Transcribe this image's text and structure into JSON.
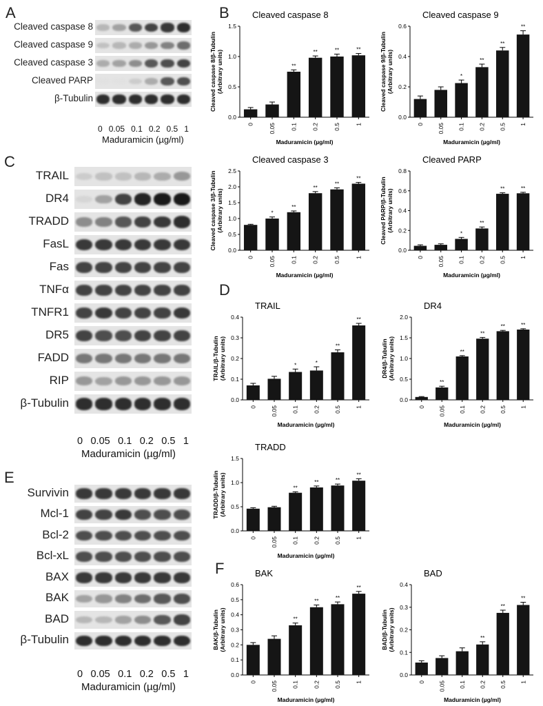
{
  "panels": {
    "A": "A",
    "B": "B",
    "C": "C",
    "D": "D",
    "E": "E",
    "F": "F"
  },
  "blots": {
    "A": {
      "labels": [
        "Cleaved caspase 8",
        "Cleaved caspase 9",
        "Cleaved caspase 3",
        "Cleaved PARP",
        "β-Tubulin"
      ],
      "intensities": [
        [
          0.25,
          0.35,
          0.7,
          0.8,
          0.85,
          0.9
        ],
        [
          0.2,
          0.25,
          0.3,
          0.4,
          0.5,
          0.6
        ],
        [
          0.3,
          0.35,
          0.45,
          0.7,
          0.75,
          0.8
        ],
        [
          0.05,
          0.05,
          0.15,
          0.3,
          0.7,
          0.75
        ],
        [
          0.9,
          0.9,
          0.9,
          0.9,
          0.9,
          0.9
        ]
      ],
      "doses": [
        "0",
        "0.05",
        "0.1",
        "0.2",
        "0.5",
        "1"
      ],
      "xlabel": "Maduramicin  (µg/ml)"
    },
    "C": {
      "labels": [
        "TRAIL",
        "DR4",
        "TRADD",
        "FasL",
        "Fas",
        "TNFα",
        "TNFR1",
        "DR5",
        "FADD",
        "RIP",
        "β-Tubulin"
      ],
      "intensities": [
        [
          0.15,
          0.2,
          0.2,
          0.25,
          0.3,
          0.4
        ],
        [
          0.1,
          0.35,
          0.8,
          0.95,
          1.0,
          1.0
        ],
        [
          0.45,
          0.5,
          0.7,
          0.8,
          0.85,
          0.9
        ],
        [
          0.85,
          0.85,
          0.85,
          0.85,
          0.85,
          0.85
        ],
        [
          0.8,
          0.8,
          0.8,
          0.8,
          0.8,
          0.8
        ],
        [
          0.8,
          0.8,
          0.8,
          0.8,
          0.8,
          0.8
        ],
        [
          0.8,
          0.85,
          0.8,
          0.8,
          0.8,
          0.85
        ],
        [
          0.8,
          0.75,
          0.75,
          0.8,
          0.8,
          0.8
        ],
        [
          0.55,
          0.55,
          0.55,
          0.55,
          0.55,
          0.55
        ],
        [
          0.4,
          0.35,
          0.4,
          0.4,
          0.4,
          0.4
        ],
        [
          0.9,
          0.9,
          0.9,
          0.9,
          0.9,
          0.9
        ]
      ],
      "doses": [
        "0",
        "0.05",
        "0.1",
        "0.2",
        "0.5",
        "1"
      ],
      "xlabel": "Maduramicin  (µg/ml)"
    },
    "E": {
      "labels": [
        "Survivin",
        "Mcl-1",
        "Bcl-2",
        "Bcl-xL",
        "BAX",
        "BAK",
        "BAD",
        "β-Tubulin"
      ],
      "intensities": [
        [
          0.85,
          0.85,
          0.85,
          0.85,
          0.85,
          0.85
        ],
        [
          0.8,
          0.8,
          0.85,
          0.75,
          0.75,
          0.75
        ],
        [
          0.75,
          0.75,
          0.75,
          0.75,
          0.75,
          0.75
        ],
        [
          0.75,
          0.75,
          0.75,
          0.75,
          0.75,
          0.75
        ],
        [
          0.85,
          0.85,
          0.85,
          0.85,
          0.85,
          0.85
        ],
        [
          0.35,
          0.4,
          0.5,
          0.6,
          0.7,
          0.75
        ],
        [
          0.25,
          0.25,
          0.35,
          0.45,
          0.7,
          0.8
        ],
        [
          0.9,
          0.9,
          0.9,
          0.9,
          0.9,
          0.9
        ]
      ],
      "doses": [
        "0",
        "0.05",
        "0.1",
        "0.2",
        "0.5",
        "1"
      ],
      "xlabel": "Maduramicin  (µg/ml)"
    }
  },
  "chart_data": [
    {
      "type": "bar",
      "title": "Cleaved caspase 8",
      "ylabel": "Cleaved caspase 8/β-Tubulin\n(Arbitrary units)",
      "xlabel": "Maduramicin (µg/ml)",
      "categories": [
        "0",
        "0.05",
        "0.1",
        "0.2",
        "0.5",
        "1"
      ],
      "values": [
        0.13,
        0.21,
        0.75,
        0.98,
        1.0,
        1.02
      ],
      "errors": [
        0.03,
        0.04,
        0.03,
        0.03,
        0.04,
        0.03
      ],
      "significance": [
        "",
        "",
        "**",
        "**",
        "**",
        "**"
      ],
      "ylim": [
        0,
        1.5
      ],
      "yticks": [
        "0.0",
        "0.5",
        "1.0",
        "1.5"
      ]
    },
    {
      "type": "bar",
      "title": "Cleaved caspase 9",
      "ylabel": "Cleaved caspase 9/β-Tubulin\n(Arbitrary units)",
      "xlabel": "Maduramicin (µg/ml)",
      "categories": [
        "0",
        "0.05",
        "0.1",
        "0.2",
        "0.5",
        "1"
      ],
      "values": [
        0.12,
        0.18,
        0.225,
        0.33,
        0.44,
        0.545
      ],
      "errors": [
        0.02,
        0.02,
        0.02,
        0.02,
        0.02,
        0.025
      ],
      "significance": [
        "",
        "",
        "*",
        "**",
        "**",
        "**"
      ],
      "ylim": [
        0,
        0.6
      ],
      "yticks": [
        "0.0",
        "0.2",
        "0.4",
        "0.6"
      ]
    },
    {
      "type": "bar",
      "title": "Cleaved caspase 3",
      "ylabel": "Cleaved caspase 3/β-Tubulin\n(Arbitrary units)",
      "xlabel": "Maduramicin (µg/ml)",
      "categories": [
        "0",
        "0.05",
        "0.1",
        "0.2",
        "0.5",
        "1"
      ],
      "values": [
        0.8,
        1.0,
        1.2,
        1.8,
        1.92,
        2.1
      ],
      "errors": [
        0.02,
        0.05,
        0.04,
        0.05,
        0.05,
        0.04
      ],
      "significance": [
        "",
        "*",
        "**",
        "**",
        "**",
        "**"
      ],
      "ylim": [
        0,
        2.5
      ],
      "yticks": [
        "0.0",
        "0.5",
        "1.0",
        "1.5",
        "2.0",
        "2.5"
      ]
    },
    {
      "type": "bar",
      "title": "Cleaved PARP",
      "ylabel": "Cleaved PARP/β-Tubulin\n(Arbitrary units)",
      "xlabel": "Maduramicin (µg/ml)",
      "categories": [
        "0",
        "0.05",
        "0.1",
        "0.2",
        "0.5",
        "1"
      ],
      "values": [
        0.045,
        0.055,
        0.115,
        0.22,
        0.57,
        0.575
      ],
      "errors": [
        0.01,
        0.01,
        0.015,
        0.015,
        0.01,
        0.01
      ],
      "significance": [
        "",
        "",
        "*",
        "**",
        "**",
        "**"
      ],
      "ylim": [
        0,
        0.8
      ],
      "yticks": [
        "0.0",
        "0.2",
        "0.4",
        "0.6",
        "0.8"
      ]
    },
    {
      "type": "bar",
      "title": "TRAIL",
      "ylabel": "TRAIL/β-Tubulin\n(Arbitrary units)",
      "xlabel": "Maduramicin (µg/ml)",
      "categories": [
        "0",
        "0.05",
        "0.1",
        "0.2",
        "0.5",
        "1"
      ],
      "values": [
        0.07,
        0.102,
        0.135,
        0.142,
        0.23,
        0.36
      ],
      "errors": [
        0.01,
        0.012,
        0.014,
        0.018,
        0.012,
        0.01
      ],
      "significance": [
        "",
        "",
        "*",
        "*",
        "**",
        "**"
      ],
      "ylim": [
        0,
        0.4
      ],
      "yticks": [
        "0.0",
        "0.1",
        "0.2",
        "0.3",
        "0.4"
      ]
    },
    {
      "type": "bar",
      "title": "DR4",
      "ylabel": "DR4/β-Tubulin\n(Arbitrary units)",
      "xlabel": "Maduramicin (µg/ml)",
      "categories": [
        "0",
        "0.05",
        "0.1",
        "0.2",
        "0.5",
        "1"
      ],
      "values": [
        0.07,
        0.3,
        1.05,
        1.48,
        1.66,
        1.7
      ],
      "errors": [
        0.01,
        0.03,
        0.02,
        0.03,
        0.02,
        0.02
      ],
      "significance": [
        "",
        "**",
        "**",
        "**",
        "**",
        "**"
      ],
      "ylim": [
        0,
        2.0
      ],
      "yticks": [
        "0.0",
        "0.5",
        "1.0",
        "1.5",
        "2.0"
      ]
    },
    {
      "type": "bar",
      "title": "TRADD",
      "ylabel": "TRADD/β-Tubulin\n(Arbitrary units)",
      "xlabel": "Maduramicin (µg/ml)",
      "categories": [
        "0",
        "0.05",
        "0.1",
        "0.2",
        "0.5",
        "1"
      ],
      "values": [
        0.46,
        0.49,
        0.79,
        0.9,
        0.94,
        1.04
      ],
      "errors": [
        0.02,
        0.02,
        0.02,
        0.03,
        0.03,
        0.04
      ],
      "significance": [
        "",
        "",
        "**",
        "**",
        "**",
        "**"
      ],
      "ylim": [
        0,
        1.5
      ],
      "yticks": [
        "0.0",
        "0.5",
        "1.0",
        "1.5"
      ]
    },
    {
      "type": "bar",
      "title": "BAK",
      "ylabel": "BAK/β-Tubulin\n(Arbitrary units)",
      "xlabel": "Maduramicin (µg/ml)",
      "categories": [
        "0",
        "0.05",
        "0.1",
        "0.2",
        "0.5",
        "1"
      ],
      "values": [
        0.2,
        0.24,
        0.33,
        0.45,
        0.47,
        0.54
      ],
      "errors": [
        0.015,
        0.02,
        0.015,
        0.015,
        0.015,
        0.015
      ],
      "significance": [
        "",
        "",
        "**",
        "**",
        "**",
        "**"
      ],
      "ylim": [
        0,
        0.6
      ],
      "yticks": [
        "0.0",
        "0.1",
        "0.2",
        "0.3",
        "0.4",
        "0.5",
        "0.6"
      ]
    },
    {
      "type": "bar",
      "title": "BAD",
      "ylabel": "BAD/β-Tubulin\n(Arbitrary units)",
      "xlabel": "Maduramicin (µg/ml)",
      "categories": [
        "0",
        "0.05",
        "0.1",
        "0.2",
        "0.5",
        "1"
      ],
      "values": [
        0.055,
        0.075,
        0.105,
        0.135,
        0.275,
        0.31
      ],
      "errors": [
        0.008,
        0.01,
        0.015,
        0.012,
        0.012,
        0.012
      ],
      "significance": [
        "",
        "",
        "",
        "**",
        "**",
        "**"
      ],
      "ylim": [
        0,
        0.4
      ],
      "yticks": [
        "0.0",
        "0.1",
        "0.2",
        "0.3",
        "0.4"
      ]
    }
  ]
}
